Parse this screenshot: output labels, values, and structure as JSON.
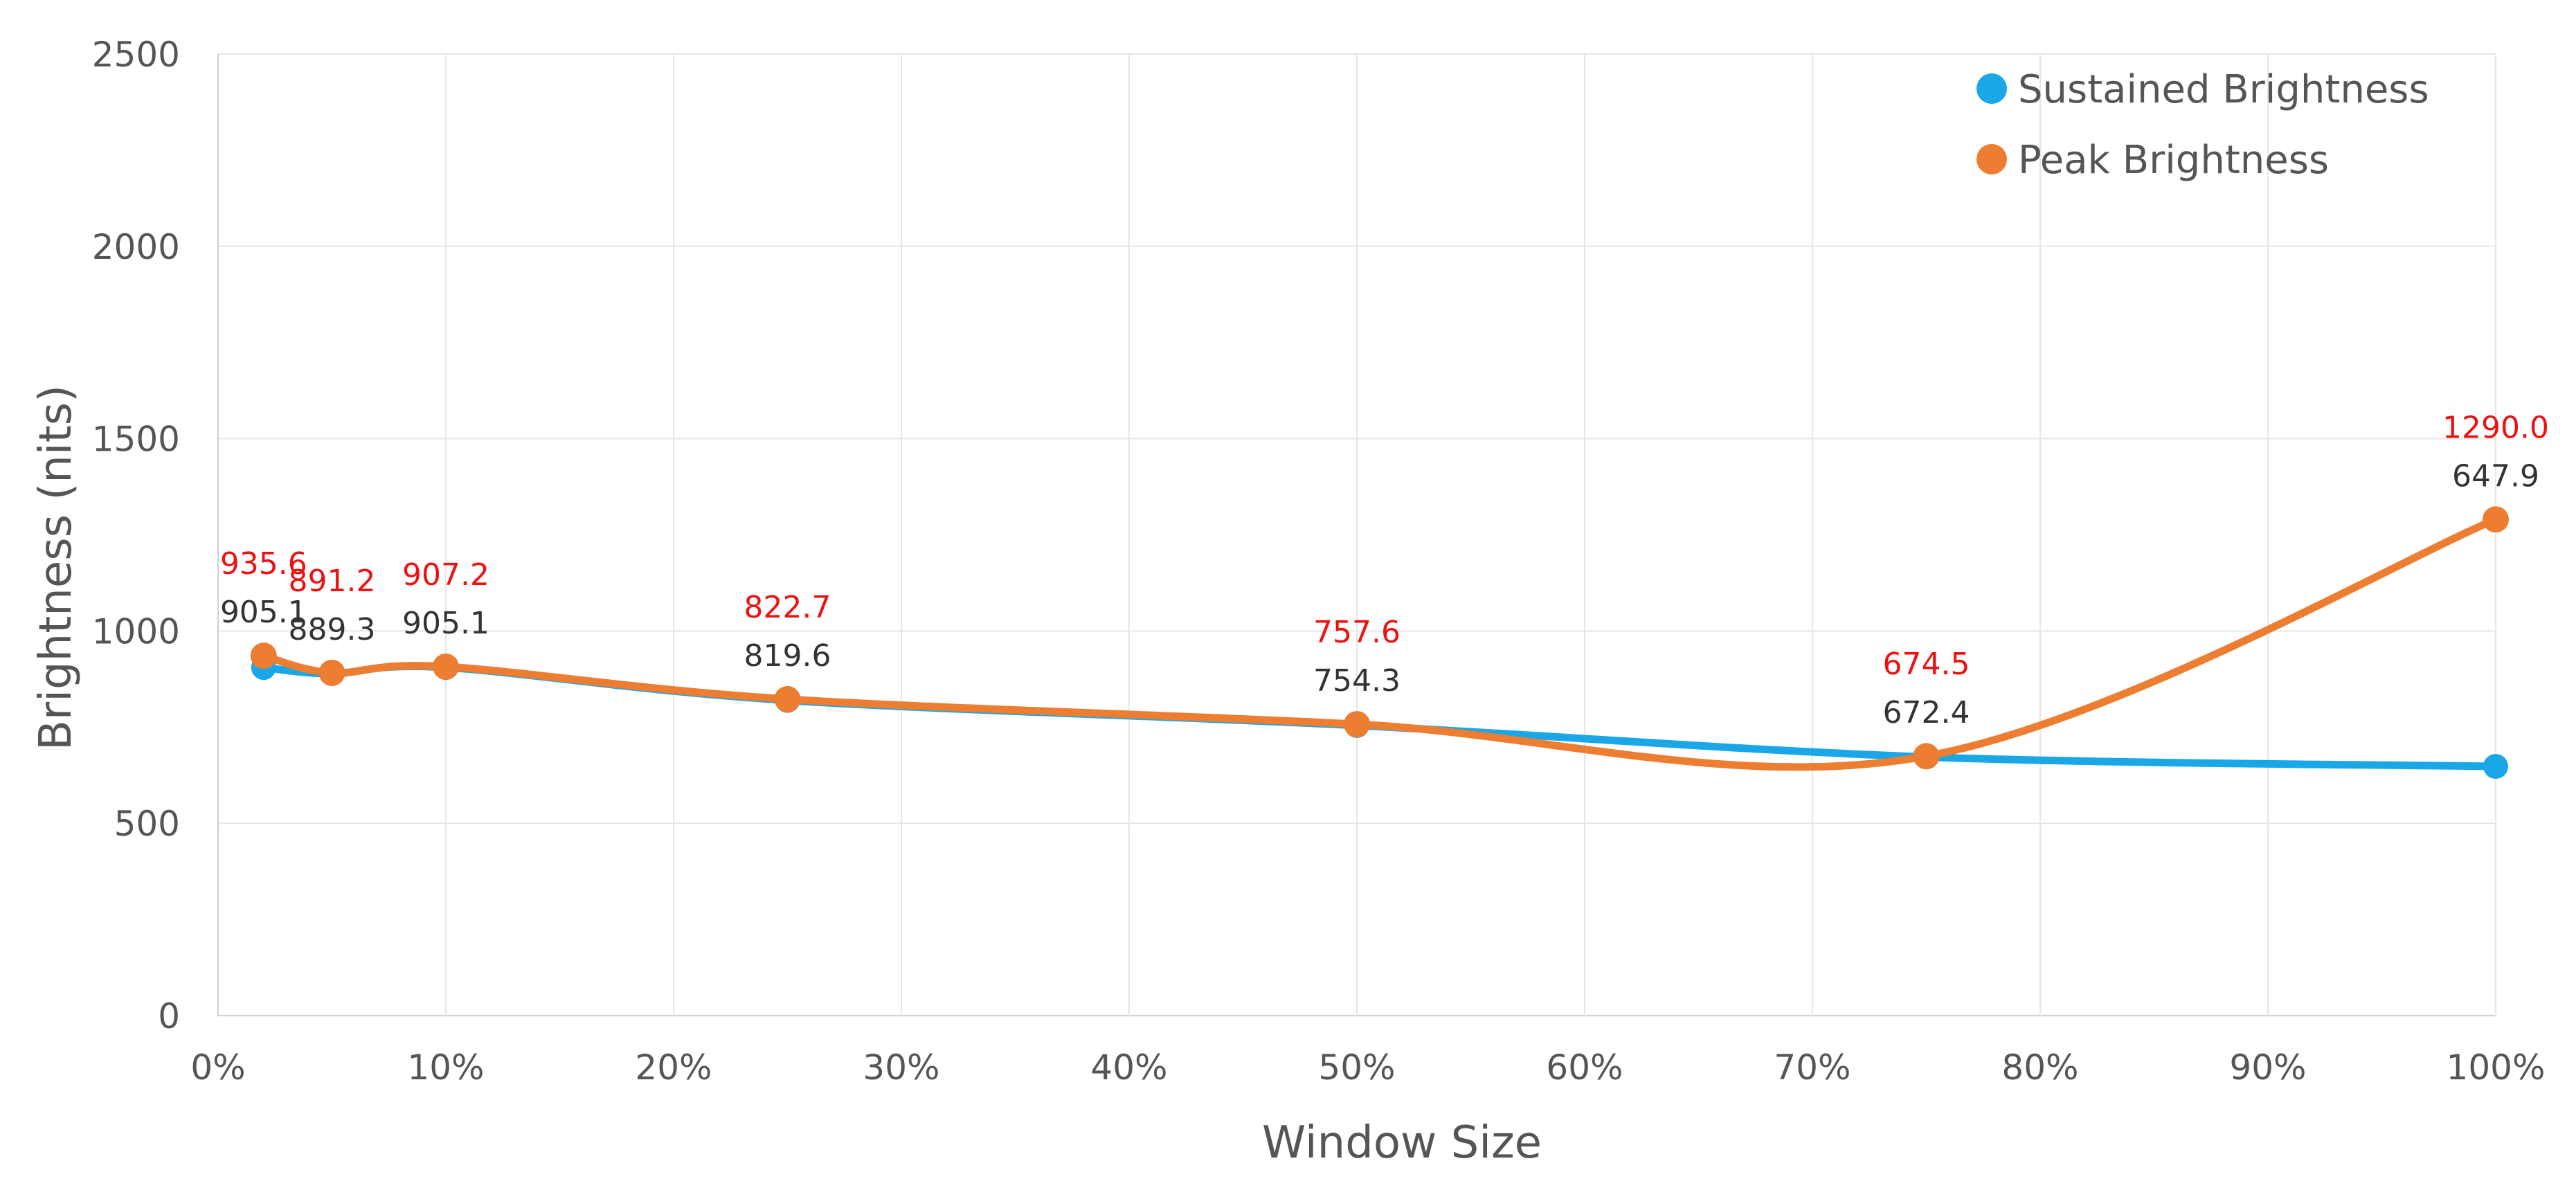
{
  "chart_data": {
    "type": "line",
    "xlabel": "Window Size",
    "ylabel": "Brightness (nits)",
    "xlim": [
      0,
      100
    ],
    "ylim": [
      0,
      2500
    ],
    "x_ticks": [
      0,
      10,
      20,
      30,
      40,
      50,
      60,
      70,
      80,
      90,
      100
    ],
    "x_tick_labels": [
      "0%",
      "10%",
      "20%",
      "30%",
      "40%",
      "50%",
      "60%",
      "70%",
      "80%",
      "90%",
      "100%"
    ],
    "y_ticks": [
      0,
      500,
      1000,
      1500,
      2000,
      2500
    ],
    "y_tick_labels": [
      "0",
      "500",
      "1000",
      "1500",
      "2000",
      "2500"
    ],
    "grid": true,
    "legend_position": "top-right",
    "x": [
      2,
      5,
      10,
      25,
      50,
      75,
      100
    ],
    "series": [
      {
        "name": "Sustained Brightness",
        "color": "#1aa7e8",
        "values": [
          905.1,
          889.3,
          905.1,
          819.6,
          754.3,
          672.4,
          647.9
        ],
        "labels": [
          "905.1",
          "889.3",
          "905.1",
          "819.6",
          "754.3",
          "672.4",
          "647.9"
        ]
      },
      {
        "name": "Peak Brightness",
        "color": "#ed7d31",
        "values": [
          935.6,
          891.2,
          907.2,
          822.7,
          757.6,
          674.5,
          1290.0
        ],
        "labels": [
          "935.6",
          "891.2",
          "907.2",
          "822.7",
          "757.6",
          "674.5",
          "1290.0"
        ]
      }
    ]
  }
}
